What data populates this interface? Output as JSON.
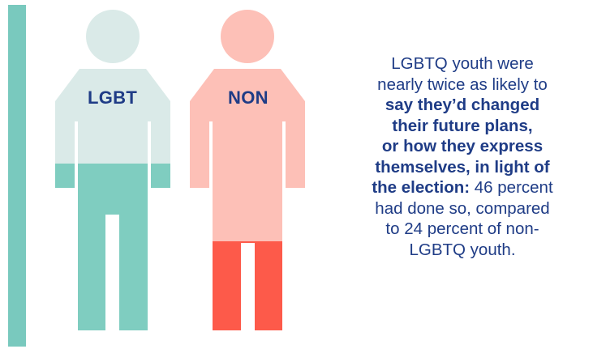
{
  "colors": {
    "accent_bar": "#79c9be",
    "lgbt_light": "#daeae8",
    "lgbt_dark": "#7fcdc0",
    "non_light": "#fdc0b7",
    "non_dark": "#fd5a4a",
    "text_blue": "#1f3c86"
  },
  "figures": [
    {
      "label": "LGBT",
      "percent": 46
    },
    {
      "label": "NON",
      "percent": 24
    }
  ],
  "caption": {
    "line1": "LGBTQ youth were",
    "line2": "nearly twice as likely to",
    "bold1": "say they’d changed",
    "bold2": "their future plans,",
    "bold3": "or how they express",
    "bold4": "themselves, in light of",
    "bold5": "the election:",
    "tail1": " 46 percent",
    "line3": "had done so, compared",
    "line4": "to 24 percent of non-",
    "line5": "LGBTQ youth."
  }
}
